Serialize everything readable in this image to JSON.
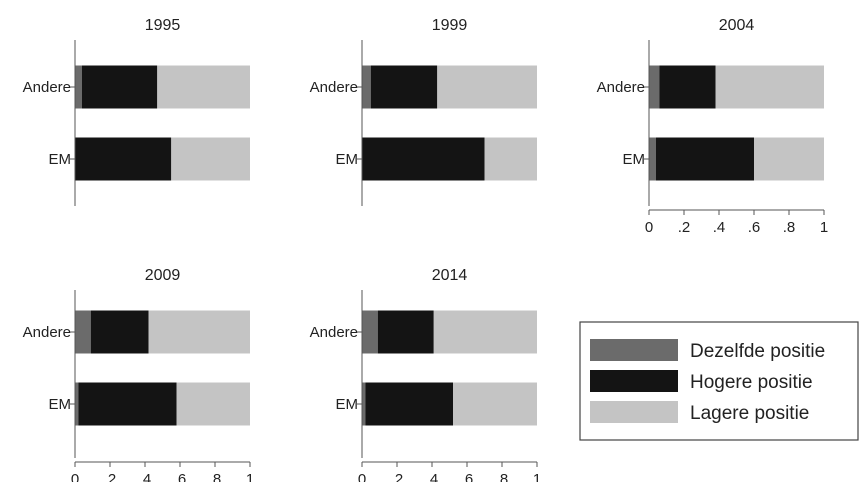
{
  "chart_data": {
    "type": "bar",
    "orientation": "horizontal",
    "stacked": true,
    "categories": [
      "Andere",
      "EM"
    ],
    "xlim": [
      0,
      1
    ],
    "x_ticks": [
      "0",
      ".2",
      ".4",
      ".6",
      ".8",
      "1"
    ],
    "grid": false,
    "legend_position": "bottom-right",
    "legend": [
      "Dezelfde positie",
      "Hogere positie",
      "Lagere positie"
    ],
    "colors": {
      "Dezelfde positie": "#6b6b6b",
      "Hogere positie": "#141414",
      "Lagere positie": "#c4c4c4"
    },
    "panels": [
      {
        "title": "1995",
        "show_ticks": false,
        "stacks": [
          {
            "category": "Andere",
            "values": [
              0.04,
              0.43,
              0.53
            ]
          },
          {
            "category": "EM",
            "values": [
              0.0,
              0.55,
              0.45
            ]
          }
        ]
      },
      {
        "title": "1999",
        "show_ticks": false,
        "stacks": [
          {
            "category": "Andere",
            "values": [
              0.05,
              0.38,
              0.57
            ]
          },
          {
            "category": "EM",
            "values": [
              0.0,
              0.7,
              0.3
            ]
          }
        ]
      },
      {
        "title": "2004",
        "show_ticks": true,
        "stacks": [
          {
            "category": "Andere",
            "values": [
              0.06,
              0.32,
              0.62
            ]
          },
          {
            "category": "EM",
            "values": [
              0.04,
              0.56,
              0.4
            ]
          }
        ]
      },
      {
        "title": "2009",
        "show_ticks": true,
        "stacks": [
          {
            "category": "Andere",
            "values": [
              0.09,
              0.33,
              0.58
            ]
          },
          {
            "category": "EM",
            "values": [
              0.02,
              0.56,
              0.42
            ]
          }
        ]
      },
      {
        "title": "2014",
        "show_ticks": true,
        "stacks": [
          {
            "category": "Andere",
            "values": [
              0.09,
              0.32,
              0.59
            ]
          },
          {
            "category": "EM",
            "values": [
              0.02,
              0.5,
              0.48
            ]
          }
        ]
      }
    ]
  }
}
